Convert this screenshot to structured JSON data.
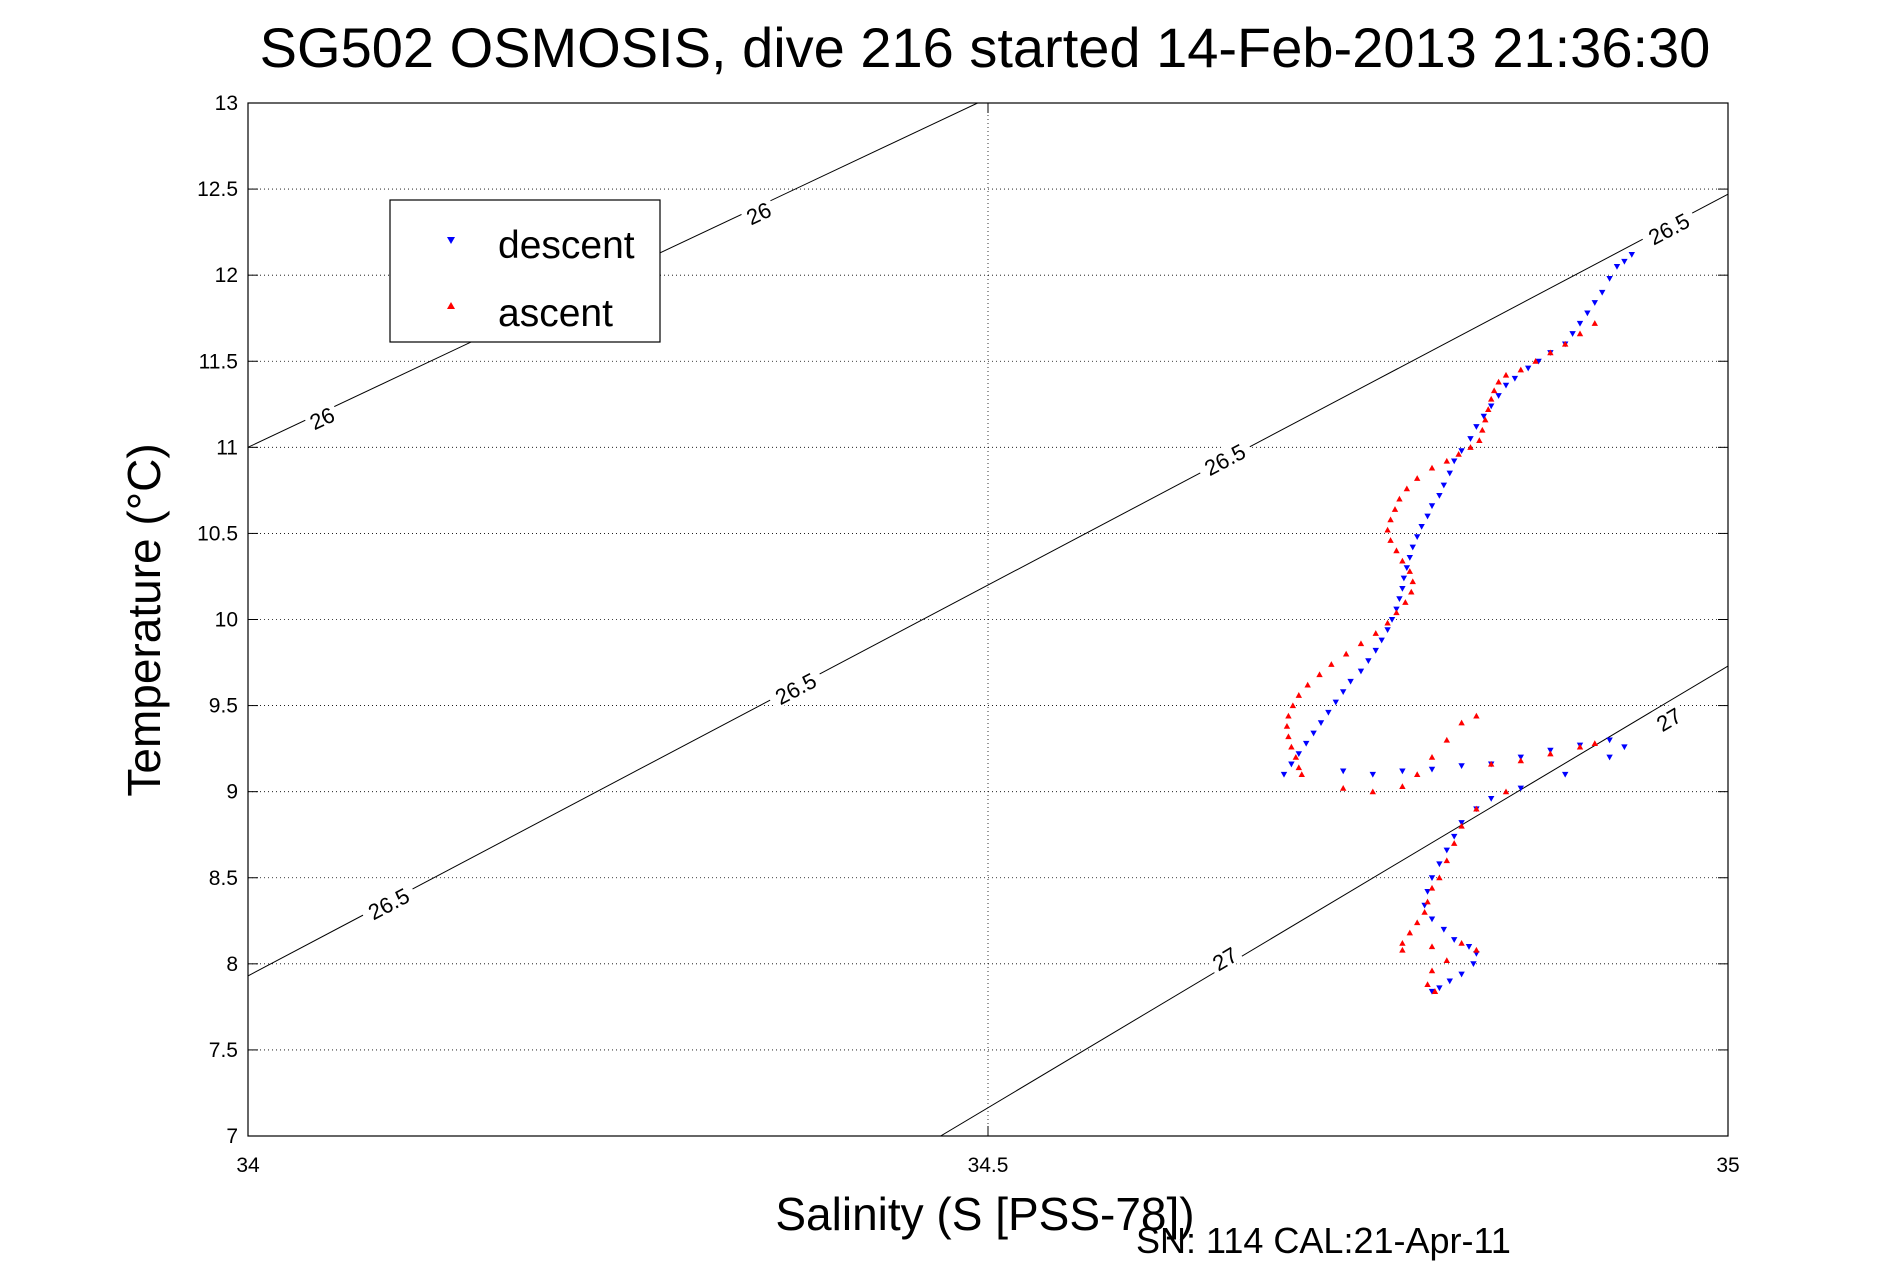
{
  "chart_data": {
    "type": "scatter",
    "title": "SG502 OSMOSIS, dive 216 started 14-Feb-2013 21:36:30",
    "xlabel": "Salinity (S [PSS-78])",
    "ylabel": "Temperature (°C)",
    "footer": "SN: 114  CAL:21-Apr-11",
    "xlim": [
      34,
      35
    ],
    "ylim": [
      7,
      13
    ],
    "grid": true,
    "legend_position": "top-left",
    "x_ticks": [
      "34",
      "34.5",
      "35"
    ],
    "y_ticks": [
      "7",
      "7.5",
      "8",
      "8.5",
      "9",
      "9.5",
      "10",
      "10.5",
      "11",
      "11.5",
      "12",
      "12.5",
      "13"
    ],
    "x_tick_values": [
      34,
      34.5,
      35
    ],
    "y_tick_values": [
      7,
      7.5,
      8,
      8.5,
      9,
      9.5,
      10,
      10.5,
      11,
      11.5,
      12,
      12.5,
      13
    ],
    "series": [
      {
        "name": "descent",
        "color": "#0000ff",
        "marker": "triangle-down",
        "points": [
          [
            34.935,
            12.12
          ],
          [
            34.93,
            12.08
          ],
          [
            34.925,
            12.05
          ],
          [
            34.92,
            11.98
          ],
          [
            34.915,
            11.9
          ],
          [
            34.91,
            11.84
          ],
          [
            34.905,
            11.78
          ],
          [
            34.9,
            11.72
          ],
          [
            34.895,
            11.66
          ],
          [
            34.89,
            11.6
          ],
          [
            34.88,
            11.55
          ],
          [
            34.872,
            11.5
          ],
          [
            34.865,
            11.46
          ],
          [
            34.856,
            11.4
          ],
          [
            34.85,
            11.36
          ],
          [
            34.845,
            11.3
          ],
          [
            34.84,
            11.24
          ],
          [
            34.835,
            11.18
          ],
          [
            34.83,
            11.12
          ],
          [
            34.826,
            11.05
          ],
          [
            34.82,
            10.98
          ],
          [
            34.815,
            10.92
          ],
          [
            34.812,
            10.85
          ],
          [
            34.808,
            10.78
          ],
          [
            34.805,
            10.72
          ],
          [
            34.8,
            10.66
          ],
          [
            34.797,
            10.6
          ],
          [
            34.793,
            10.54
          ],
          [
            34.79,
            10.48
          ],
          [
            34.787,
            10.42
          ],
          [
            34.785,
            10.36
          ],
          [
            34.783,
            10.3
          ],
          [
            34.781,
            10.24
          ],
          [
            34.78,
            10.18
          ],
          [
            34.778,
            10.12
          ],
          [
            34.776,
            10.06
          ],
          [
            34.773,
            10.0
          ],
          [
            34.77,
            9.94
          ],
          [
            34.766,
            9.88
          ],
          [
            34.762,
            9.82
          ],
          [
            34.757,
            9.76
          ],
          [
            34.752,
            9.7
          ],
          [
            34.745,
            9.64
          ],
          [
            34.74,
            9.58
          ],
          [
            34.735,
            9.52
          ],
          [
            34.73,
            9.46
          ],
          [
            34.725,
            9.4
          ],
          [
            34.72,
            9.34
          ],
          [
            34.715,
            9.28
          ],
          [
            34.71,
            9.22
          ],
          [
            34.705,
            9.16
          ],
          [
            34.7,
            9.1
          ],
          [
            34.74,
            9.12
          ],
          [
            34.76,
            9.1
          ],
          [
            34.78,
            9.12
          ],
          [
            34.8,
            9.13
          ],
          [
            34.82,
            9.15
          ],
          [
            34.84,
            9.16
          ],
          [
            34.86,
            9.2
          ],
          [
            34.88,
            9.24
          ],
          [
            34.9,
            9.27
          ],
          [
            34.92,
            9.3
          ],
          [
            34.93,
            9.26
          ],
          [
            34.92,
            9.2
          ],
          [
            34.89,
            9.1
          ],
          [
            34.86,
            9.02
          ],
          [
            34.84,
            8.96
          ],
          [
            34.83,
            8.9
          ],
          [
            34.82,
            8.82
          ],
          [
            34.815,
            8.74
          ],
          [
            34.81,
            8.66
          ],
          [
            34.805,
            8.58
          ],
          [
            34.8,
            8.5
          ],
          [
            34.797,
            8.42
          ],
          [
            34.795,
            8.34
          ],
          [
            34.8,
            8.26
          ],
          [
            34.808,
            8.2
          ],
          [
            34.815,
            8.14
          ],
          [
            34.825,
            8.1
          ],
          [
            34.83,
            8.06
          ],
          [
            34.828,
            8.0
          ],
          [
            34.82,
            7.94
          ],
          [
            34.812,
            7.9
          ],
          [
            34.805,
            7.86
          ],
          [
            34.8,
            7.84
          ]
        ]
      },
      {
        "name": "ascent",
        "color": "#ff0000",
        "marker": "triangle-up",
        "points": [
          [
            34.91,
            11.72
          ],
          [
            34.9,
            11.66
          ],
          [
            34.89,
            11.6
          ],
          [
            34.88,
            11.55
          ],
          [
            34.87,
            11.5
          ],
          [
            34.86,
            11.45
          ],
          [
            34.85,
            11.42
          ],
          [
            34.845,
            11.38
          ],
          [
            34.842,
            11.33
          ],
          [
            34.84,
            11.28
          ],
          [
            34.838,
            11.22
          ],
          [
            34.836,
            11.16
          ],
          [
            34.834,
            11.1
          ],
          [
            34.832,
            11.04
          ],
          [
            34.826,
            11.0
          ],
          [
            34.818,
            10.96
          ],
          [
            34.81,
            10.92
          ],
          [
            34.8,
            10.88
          ],
          [
            34.79,
            10.82
          ],
          [
            34.783,
            10.76
          ],
          [
            34.778,
            10.7
          ],
          [
            34.775,
            10.64
          ],
          [
            34.772,
            10.58
          ],
          [
            34.77,
            10.52
          ],
          [
            34.772,
            10.46
          ],
          [
            34.776,
            10.4
          ],
          [
            34.78,
            10.34
          ],
          [
            34.785,
            10.28
          ],
          [
            34.787,
            10.22
          ],
          [
            34.786,
            10.16
          ],
          [
            34.782,
            10.1
          ],
          [
            34.776,
            10.04
          ],
          [
            34.77,
            9.98
          ],
          [
            34.762,
            9.92
          ],
          [
            34.752,
            9.86
          ],
          [
            34.742,
            9.8
          ],
          [
            34.732,
            9.74
          ],
          [
            34.724,
            9.68
          ],
          [
            34.716,
            9.62
          ],
          [
            34.71,
            9.56
          ],
          [
            34.706,
            9.5
          ],
          [
            34.703,
            9.44
          ],
          [
            34.702,
            9.38
          ],
          [
            34.703,
            9.32
          ],
          [
            34.705,
            9.26
          ],
          [
            34.708,
            9.2
          ],
          [
            34.71,
            9.14
          ],
          [
            34.712,
            9.1
          ],
          [
            34.74,
            9.02
          ],
          [
            34.76,
            9.0
          ],
          [
            34.78,
            9.03
          ],
          [
            34.79,
            9.1
          ],
          [
            34.8,
            9.2
          ],
          [
            34.81,
            9.3
          ],
          [
            34.82,
            9.4
          ],
          [
            34.83,
            9.44
          ],
          [
            34.84,
            9.16
          ],
          [
            34.86,
            9.18
          ],
          [
            34.88,
            9.22
          ],
          [
            34.9,
            9.26
          ],
          [
            34.91,
            9.28
          ],
          [
            34.85,
            9.0
          ],
          [
            34.83,
            8.9
          ],
          [
            34.82,
            8.8
          ],
          [
            34.815,
            8.7
          ],
          [
            34.81,
            8.6
          ],
          [
            34.805,
            8.5
          ],
          [
            34.8,
            8.44
          ],
          [
            34.797,
            8.36
          ],
          [
            34.795,
            8.3
          ],
          [
            34.79,
            8.24
          ],
          [
            34.785,
            8.18
          ],
          [
            34.78,
            8.12
          ],
          [
            34.78,
            8.08
          ],
          [
            34.8,
            8.1
          ],
          [
            34.82,
            8.12
          ],
          [
            34.83,
            8.08
          ],
          [
            34.81,
            8.02
          ],
          [
            34.8,
            7.96
          ],
          [
            34.797,
            7.88
          ],
          [
            34.802,
            7.84
          ]
        ]
      }
    ],
    "contours": [
      {
        "label": "26",
        "points": [
          [
            34,
            11.0
          ],
          [
            34.493,
            13.0
          ]
        ],
        "label_positions": [
          [
            34.05,
            11.17
          ],
          [
            34.345,
            12.36
          ]
        ]
      },
      {
        "label": "26.5",
        "points": [
          [
            34,
            7.93
          ],
          [
            35,
            12.47
          ]
        ],
        "label_positions": [
          [
            34.095,
            8.35
          ],
          [
            34.37,
            9.6
          ],
          [
            34.66,
            10.93
          ],
          [
            34.96,
            12.27
          ]
        ]
      },
      {
        "label": "27",
        "points": [
          [
            34.468,
            7.0
          ],
          [
            35,
            9.73
          ]
        ],
        "label_positions": [
          [
            34.66,
            8.03
          ],
          [
            34.96,
            9.42
          ]
        ]
      }
    ]
  }
}
